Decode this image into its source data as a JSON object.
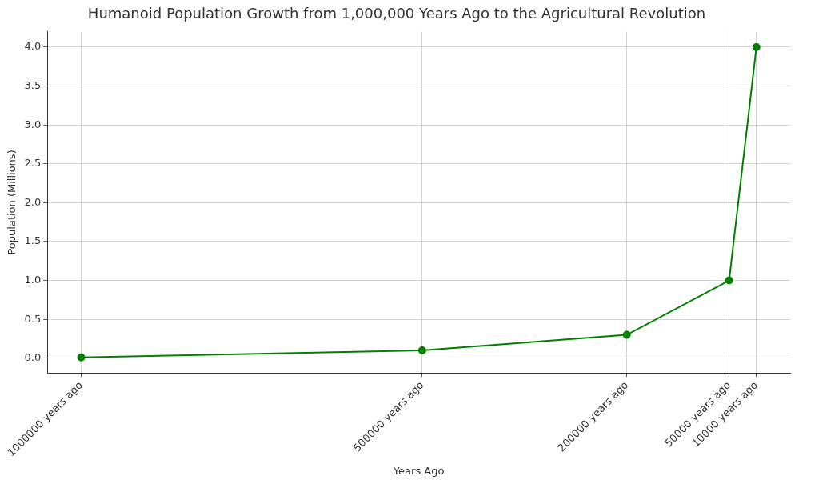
{
  "chart_data": {
    "type": "line",
    "title": "Humanoid Population Growth from 1,000,000 Years Ago to the Agricultural Revolution",
    "x_label": "Years Ago",
    "y_label": "Population (Millions)",
    "x": [
      1000000,
      500000,
      200000,
      50000,
      10000
    ],
    "values": [
      0.01,
      0.1,
      0.3,
      1.0,
      4.0
    ],
    "color": "#008000",
    "marker": "circle",
    "line_style": "solid",
    "xlim": [
      1049500,
      -39500
    ],
    "xticks": [
      {
        "value": 1000000,
        "label": "1000000 years ago"
      },
      {
        "value": 500000,
        "label": "500000 years ago"
      },
      {
        "value": 200000,
        "label": "200000 years ago"
      },
      {
        "value": 50000,
        "label": "50000 years ago"
      },
      {
        "value": 10000,
        "label": "10000 years ago"
      }
    ],
    "ylim": [
      -0.1895,
      4.1995
    ],
    "yticks": [
      {
        "value": 0,
        "label": "0.0"
      },
      0.5,
      {
        "value": 1,
        "label": "1.0"
      },
      1.5,
      {
        "value": 2,
        "label": "2.0"
      },
      2.5,
      {
        "value": 3,
        "label": "3.0"
      },
      3.5,
      {
        "value": 4,
        "label": "4.0"
      }
    ],
    "grid": true
  }
}
